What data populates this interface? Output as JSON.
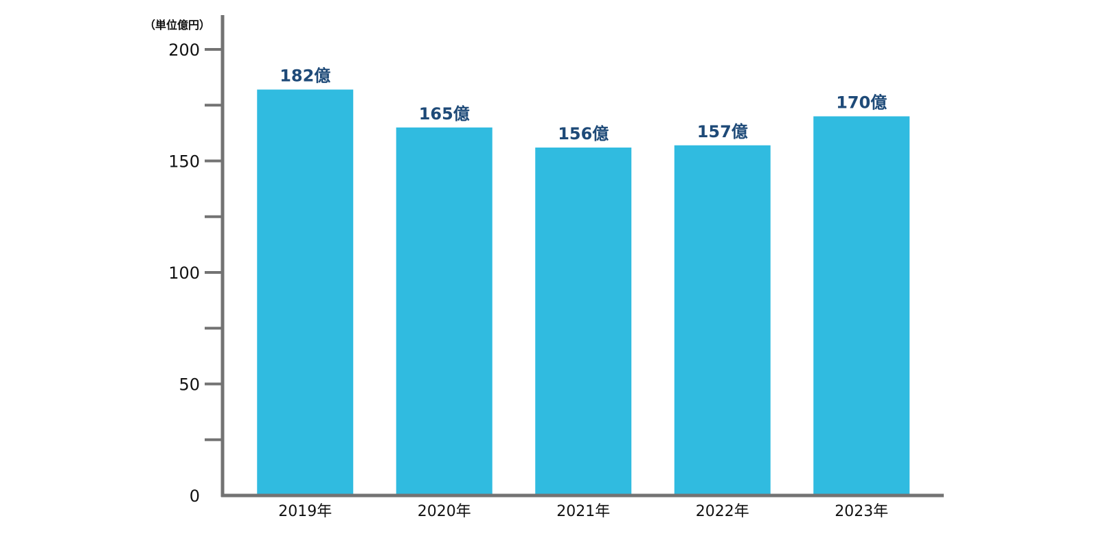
{
  "chart_data": {
    "type": "bar",
    "unit_label": "（単位億円）",
    "categories": [
      "2019年",
      "2020年",
      "2021年",
      "2022年",
      "2023年"
    ],
    "values": [
      182,
      165,
      156,
      157,
      170
    ],
    "data_labels": [
      "182億",
      "165億",
      "156億",
      "157億",
      "170億"
    ],
    "ylim": [
      0,
      200
    ],
    "y_major_ticks": [
      0,
      50,
      100,
      150,
      200
    ],
    "y_major_tick_labels": [
      "0",
      "50",
      "100",
      "150",
      "200"
    ],
    "y_minor_ticks": [
      25,
      75,
      125,
      175
    ],
    "grid": false,
    "legend": "none",
    "colors": {
      "bar": "#30bbe0",
      "axis": "#737373",
      "data_label": "#1e4a78"
    }
  }
}
